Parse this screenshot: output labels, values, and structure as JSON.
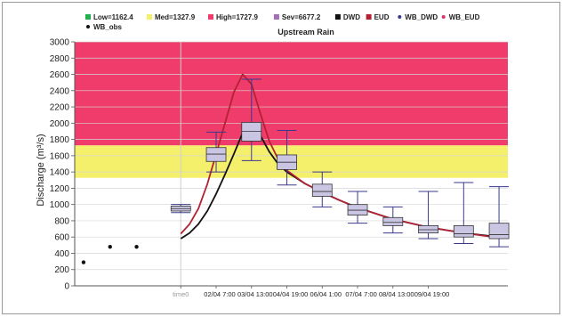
{
  "chart_data": {
    "type": "box",
    "subtitle": "Upstream Rain",
    "ylabel": "Discharge (m³/s)",
    "ylim": [
      0,
      3000
    ],
    "yticks": [
      0,
      200,
      400,
      600,
      800,
      1000,
      1200,
      1400,
      1600,
      1800,
      2000,
      2200,
      2400,
      2600,
      2800,
      3000
    ],
    "x_tick_labels": [
      "time0",
      "02/04 7:00",
      "03/04 13:00",
      "04/04 19:00",
      "06/04 1:00",
      "07/04 7:00",
      "08/04 13:00",
      "09/04 19:00"
    ],
    "grid": true,
    "legend_position": "top",
    "thresholds": [
      {
        "name": "Low",
        "value": 1162.4,
        "label": "Low=1162.4",
        "color": "#22b14c"
      },
      {
        "name": "Med",
        "value": 1327.9,
        "label": "Med=1327.9",
        "color": "#f5f06c"
      },
      {
        "name": "High",
        "value": 1727.9,
        "label": "High=1727.9",
        "color": "#f03c6a"
      },
      {
        "name": "Sev",
        "value": 6677.2,
        "label": "Sev=6677.2",
        "color": "#a070b0"
      }
    ],
    "legend": [
      {
        "label": "Low=1162.4",
        "kind": "square",
        "color": "#22b14c"
      },
      {
        "label": "Med=1327.9",
        "kind": "square",
        "color": "#f5f06c"
      },
      {
        "label": "High=1727.9",
        "kind": "square",
        "color": "#f03c6a"
      },
      {
        "label": "Sev=6677.2",
        "kind": "square",
        "color": "#a070b0"
      },
      {
        "label": "DWD",
        "kind": "square",
        "color": "#111111"
      },
      {
        "label": "EUD",
        "kind": "square",
        "color": "#b22234"
      },
      {
        "label": "WB_DWD",
        "kind": "dot",
        "color": "#3a3a8c"
      },
      {
        "label": "WB_EUD",
        "kind": "dot",
        "color": "#e0306a"
      },
      {
        "label": "WB_obs",
        "kind": "dot",
        "color": "#111111"
      }
    ],
    "observed": [
      {
        "t": -11,
        "value": 290
      },
      {
        "t": -8,
        "value": 480
      },
      {
        "t": -5,
        "value": 480
      }
    ],
    "boxes": [
      {
        "t": 0,
        "min": 900,
        "q1": 920,
        "median": 950,
        "q3": 980,
        "max": 1000
      },
      {
        "t": 4,
        "min": 1400,
        "q1": 1530,
        "median": 1620,
        "q3": 1700,
        "max": 1890
      },
      {
        "t": 8,
        "min": 1540,
        "q1": 1780,
        "median": 1900,
        "q3": 2010,
        "max": 2540
      },
      {
        "t": 12,
        "min": 1240,
        "q1": 1430,
        "median": 1520,
        "q3": 1610,
        "max": 1910
      },
      {
        "t": 16,
        "min": 970,
        "q1": 1100,
        "median": 1160,
        "q3": 1250,
        "max": 1400
      },
      {
        "t": 20,
        "min": 770,
        "q1": 870,
        "median": 930,
        "q3": 1000,
        "max": 1160
      },
      {
        "t": 24,
        "min": 650,
        "q1": 740,
        "median": 780,
        "q3": 840,
        "max": 970
      },
      {
        "t": 28,
        "min": 580,
        "q1": 650,
        "median": 690,
        "q3": 740,
        "max": 1160
      },
      {
        "t": 32,
        "min": 520,
        "q1": 600,
        "median": 640,
        "q3": 740,
        "max": 1270
      },
      {
        "t": 36,
        "min": 480,
        "q1": 580,
        "median": 630,
        "q3": 770,
        "max": 1220
      }
    ],
    "series": [
      {
        "name": "DWD",
        "color": "#111111",
        "points": [
          [
            0,
            580
          ],
          [
            1,
            650
          ],
          [
            2,
            760
          ],
          [
            3,
            920
          ],
          [
            4,
            1130
          ],
          [
            5,
            1370
          ],
          [
            6,
            1620
          ],
          [
            7,
            1880
          ],
          [
            8,
            1990
          ],
          [
            9,
            1850
          ],
          [
            10,
            1650
          ],
          [
            11,
            1500
          ],
          [
            12,
            1400
          ],
          [
            14,
            1260
          ],
          [
            16,
            1150
          ],
          [
            18,
            1050
          ],
          [
            20,
            960
          ],
          [
            24,
            820
          ],
          [
            28,
            720
          ],
          [
            32,
            650
          ],
          [
            36,
            600
          ]
        ]
      },
      {
        "name": "EUD",
        "color": "#b22234",
        "points": [
          [
            0,
            640
          ],
          [
            1,
            760
          ],
          [
            2,
            950
          ],
          [
            3,
            1250
          ],
          [
            4,
            1620
          ],
          [
            5,
            2000
          ],
          [
            6,
            2380
          ],
          [
            7,
            2600
          ],
          [
            8,
            2480
          ],
          [
            9,
            2120
          ],
          [
            10,
            1780
          ],
          [
            11,
            1560
          ],
          [
            12,
            1420
          ],
          [
            14,
            1260
          ],
          [
            16,
            1150
          ],
          [
            18,
            1050
          ],
          [
            20,
            960
          ],
          [
            24,
            820
          ],
          [
            28,
            720
          ],
          [
            32,
            650
          ],
          [
            36,
            590
          ]
        ]
      }
    ]
  }
}
